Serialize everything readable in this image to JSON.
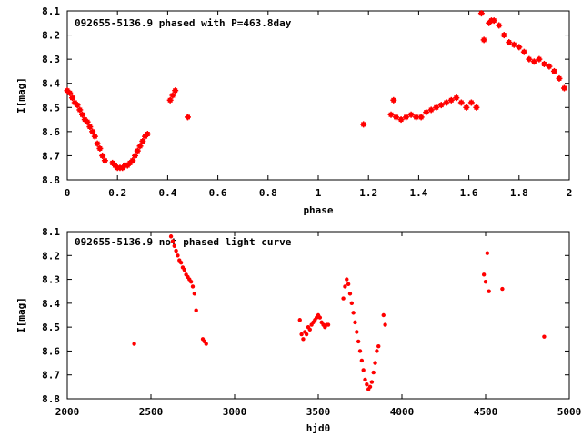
{
  "chart_data": [
    {
      "type": "scatter",
      "title": "092655-5136.9 phased with P=463.8day",
      "xlabel": "phase",
      "ylabel": "I[mag]",
      "xlim": [
        0,
        2
      ],
      "ylim": [
        8.8,
        8.1
      ],
      "y_inverted": true,
      "xticks": [
        "0",
        "0.2",
        "0.4",
        "0.6",
        "0.8",
        "1",
        "1.2",
        "1.4",
        "1.6",
        "1.8",
        "2"
      ],
      "yticks": [
        "8.1",
        "8.2",
        "8.3",
        "8.4",
        "8.5",
        "8.6",
        "8.7",
        "8.8"
      ],
      "grid": false,
      "color": "#ff0000",
      "marker": "star",
      "x": [
        0.0,
        0.01,
        0.02,
        0.03,
        0.04,
        0.05,
        0.06,
        0.07,
        0.08,
        0.09,
        0.1,
        0.11,
        0.12,
        0.13,
        0.14,
        0.15,
        0.18,
        0.19,
        0.2,
        0.21,
        0.22,
        0.23,
        0.24,
        0.25,
        0.26,
        0.27,
        0.28,
        0.29,
        0.3,
        0.31,
        0.32,
        0.41,
        0.42,
        0.43,
        0.48,
        1.18,
        1.29,
        1.3,
        1.31,
        1.33,
        1.35,
        1.37,
        1.39,
        1.41,
        1.43,
        1.45,
        1.47,
        1.49,
        1.51,
        1.53,
        1.55,
        1.57,
        1.59,
        1.61,
        1.63,
        1.65,
        1.66,
        1.68,
        1.69,
        1.7,
        1.72,
        1.74,
        1.76,
        1.78,
        1.8,
        1.82,
        1.84,
        1.86,
        1.88,
        1.9,
        1.92,
        1.94,
        1.96,
        1.98
      ],
      "y": [
        8.43,
        8.44,
        8.46,
        8.48,
        8.49,
        8.51,
        8.53,
        8.55,
        8.56,
        8.58,
        8.6,
        8.62,
        8.65,
        8.67,
        8.7,
        8.72,
        8.73,
        8.74,
        8.75,
        8.75,
        8.75,
        8.74,
        8.74,
        8.73,
        8.72,
        8.7,
        8.68,
        8.66,
        8.64,
        8.62,
        8.61,
        8.47,
        8.45,
        8.43,
        8.54,
        8.57,
        8.53,
        8.47,
        8.54,
        8.55,
        8.54,
        8.53,
        8.54,
        8.54,
        8.52,
        8.51,
        8.5,
        8.49,
        8.48,
        8.47,
        8.46,
        8.48,
        8.5,
        8.48,
        8.5,
        8.11,
        8.22,
        8.15,
        8.14,
        8.14,
        8.16,
        8.2,
        8.23,
        8.24,
        8.25,
        8.27,
        8.3,
        8.31,
        8.3,
        8.32,
        8.33,
        8.35,
        8.38,
        8.42
      ]
    },
    {
      "type": "scatter",
      "title": "092655-5136.9 not phased light curve",
      "xlabel": "hjd0",
      "ylabel": "I[mag]",
      "xlim": [
        2000,
        5000
      ],
      "ylim": [
        8.8,
        8.1
      ],
      "y_inverted": true,
      "xticks": [
        "2000",
        "2500",
        "3000",
        "3500",
        "4000",
        "4500",
        "5000"
      ],
      "yticks": [
        "8.1",
        "8.2",
        "8.3",
        "8.4",
        "8.5",
        "8.6",
        "8.7",
        "8.8"
      ],
      "grid": false,
      "color": "#ff0000",
      "marker": "dot",
      "x": [
        2400,
        2620,
        2630,
        2640,
        2650,
        2660,
        2670,
        2680,
        2690,
        2700,
        2710,
        2720,
        2730,
        2740,
        2750,
        2760,
        2770,
        2810,
        2820,
        2830,
        3390,
        3400,
        3410,
        3420,
        3430,
        3440,
        3450,
        3460,
        3470,
        3480,
        3490,
        3500,
        3510,
        3520,
        3530,
        3540,
        3550,
        3560,
        3650,
        3660,
        3670,
        3680,
        3690,
        3700,
        3710,
        3720,
        3730,
        3740,
        3750,
        3760,
        3770,
        3780,
        3790,
        3800,
        3810,
        3820,
        3830,
        3840,
        3850,
        3860,
        3890,
        3900,
        4490,
        4500,
        4510,
        4520,
        4600,
        4850
      ],
      "y": [
        8.57,
        8.12,
        8.14,
        8.16,
        8.18,
        8.2,
        8.22,
        8.23,
        8.25,
        8.26,
        8.28,
        8.29,
        8.3,
        8.31,
        8.33,
        8.36,
        8.43,
        8.55,
        8.56,
        8.57,
        8.47,
        8.53,
        8.55,
        8.52,
        8.53,
        8.5,
        8.51,
        8.49,
        8.48,
        8.47,
        8.46,
        8.45,
        8.46,
        8.48,
        8.49,
        8.5,
        8.49,
        8.49,
        8.38,
        8.33,
        8.3,
        8.32,
        8.36,
        8.4,
        8.44,
        8.48,
        8.52,
        8.56,
        8.6,
        8.64,
        8.68,
        8.72,
        8.74,
        8.76,
        8.75,
        8.73,
        8.69,
        8.65,
        8.6,
        8.58,
        8.45,
        8.49,
        8.28,
        8.31,
        8.19,
        8.35,
        8.34,
        8.54
      ]
    }
  ]
}
